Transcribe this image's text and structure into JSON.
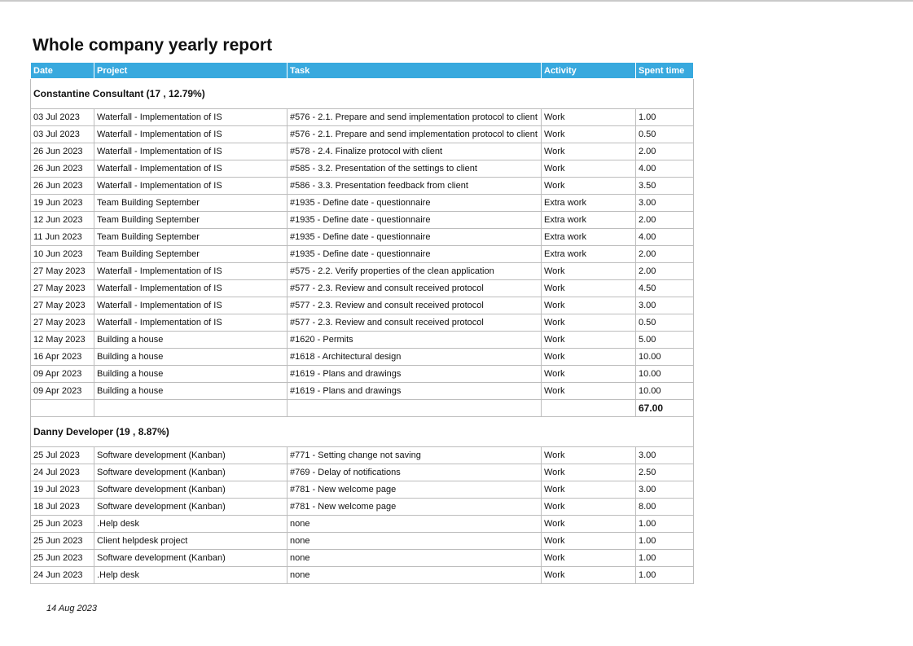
{
  "title": "Whole company yearly report",
  "columns": [
    "Date",
    "Project",
    "Task",
    "Activity",
    "Spent time"
  ],
  "groups": [
    {
      "header": "Constantine Consultant (17 , 12.79%)",
      "rows": [
        [
          "03 Jul 2023",
          "Waterfall - Implementation of IS",
          "#576 - 2.1. Prepare and send implementation protocol to client",
          "Work",
          "1.00"
        ],
        [
          "03 Jul 2023",
          "Waterfall - Implementation of IS",
          "#576 - 2.1. Prepare and send implementation protocol to client",
          "Work",
          "0.50"
        ],
        [
          "26 Jun 2023",
          "Waterfall - Implementation of IS",
          "#578 - 2.4. Finalize protocol with client",
          "Work",
          "2.00"
        ],
        [
          "26 Jun 2023",
          "Waterfall - Implementation of IS",
          "#585 - 3.2. Presentation of the settings to client",
          "Work",
          "4.00"
        ],
        [
          "26 Jun 2023",
          "Waterfall - Implementation of IS",
          "#586 - 3.3. Presentation feedback from client",
          "Work",
          "3.50"
        ],
        [
          "19 Jun 2023",
          "Team Building September",
          "#1935 - Define date - questionnaire",
          "Extra work",
          "3.00"
        ],
        [
          "12 Jun 2023",
          "Team Building September",
          "#1935 - Define date - questionnaire",
          "Extra work",
          "2.00"
        ],
        [
          "11 Jun 2023",
          "Team Building September",
          "#1935 - Define date - questionnaire",
          "Extra work",
          "4.00"
        ],
        [
          "10 Jun 2023",
          "Team Building September",
          "#1935 - Define date - questionnaire",
          "Extra work",
          "2.00"
        ],
        [
          "27 May 2023",
          "Waterfall - Implementation of IS",
          "#575 - 2.2. Verify properties of the clean application",
          "Work",
          "2.00"
        ],
        [
          "27 May 2023",
          "Waterfall - Implementation of IS",
          "#577 - 2.3. Review and consult received protocol",
          "Work",
          "4.50"
        ],
        [
          "27 May 2023",
          "Waterfall - Implementation of IS",
          "#577 - 2.3. Review and consult received protocol",
          "Work",
          "3.00"
        ],
        [
          "27 May 2023",
          "Waterfall - Implementation of IS",
          "#577 - 2.3. Review and consult received protocol",
          "Work",
          "0.50"
        ],
        [
          "12 May 2023",
          "Building a house",
          "#1620 - Permits",
          "Work",
          "5.00"
        ],
        [
          "16 Apr 2023",
          "Building a house",
          "#1618 - Architectural design",
          "Work",
          "10.00"
        ],
        [
          "09 Apr 2023",
          "Building a house",
          "#1619 - Plans and drawings",
          "Work",
          "10.00"
        ],
        [
          "09 Apr 2023",
          "Building a house",
          "#1619 - Plans and drawings",
          "Work",
          "10.00"
        ]
      ],
      "total": "67.00"
    },
    {
      "header": "Danny Developer (19 , 8.87%)",
      "rows": [
        [
          "25 Jul 2023",
          "Software development (Kanban)",
          "#771 - Setting change not saving",
          "Work",
          "3.00"
        ],
        [
          "24 Jul 2023",
          "Software development (Kanban)",
          "#769 - Delay of notifications",
          "Work",
          "2.50"
        ],
        [
          "19 Jul 2023",
          "Software development (Kanban)",
          "#781 - New welcome page",
          "Work",
          "3.00"
        ],
        [
          "18 Jul 2023",
          "Software development (Kanban)",
          "#781 - New welcome page",
          "Work",
          "8.00"
        ],
        [
          "25 Jun 2023",
          ".Help desk",
          "none",
          "Work",
          "1.00"
        ],
        [
          "25 Jun 2023",
          "Client helpdesk project",
          "none",
          "Work",
          "1.00"
        ],
        [
          "25 Jun 2023",
          "Software development (Kanban)",
          "none",
          "Work",
          "1.00"
        ],
        [
          "24 Jun 2023",
          ".Help desk",
          "none",
          "Work",
          "1.00"
        ]
      ]
    }
  ],
  "footer": "14 Aug 2023"
}
